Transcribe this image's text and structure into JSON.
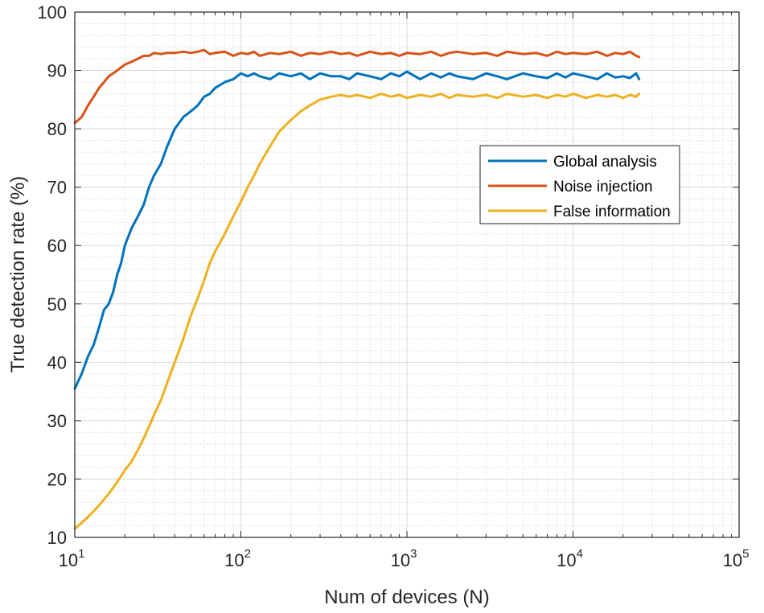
{
  "chart_data": {
    "type": "line",
    "title": "",
    "xlabel": "Num of devices (N)",
    "ylabel": "True detection rate (%)",
    "xscale": "log",
    "xlim": [
      10,
      100000
    ],
    "ylim": [
      10,
      100
    ],
    "x_ticks": [
      {
        "value": 10,
        "base": "10",
        "exp": "1"
      },
      {
        "value": 100,
        "base": "10",
        "exp": "2"
      },
      {
        "value": 1000,
        "base": "10",
        "exp": "3"
      },
      {
        "value": 10000,
        "base": "10",
        "exp": "4"
      },
      {
        "value": 100000,
        "base": "10",
        "exp": "5"
      }
    ],
    "y_ticks": [
      "10",
      "20",
      "30",
      "40",
      "50",
      "60",
      "70",
      "80",
      "90",
      "100"
    ],
    "grid": true,
    "legend": "right",
    "series": [
      {
        "name": "Global analysis",
        "color": "#0072bd",
        "x": [
          10,
          11,
          12,
          13,
          14,
          15,
          16,
          17,
          18,
          19,
          20,
          22,
          24,
          26,
          28,
          30,
          33,
          36,
          40,
          45,
          50,
          55,
          60,
          65,
          70,
          80,
          90,
          100,
          110,
          120,
          130,
          150,
          170,
          200,
          230,
          260,
          300,
          350,
          400,
          450,
          500,
          600,
          700,
          800,
          900,
          1000,
          1200,
          1400,
          1600,
          1800,
          2000,
          2500,
          3000,
          3500,
          4000,
          5000,
          6000,
          7000,
          8000,
          9000,
          10000,
          12000,
          14000,
          16000,
          18000,
          20000,
          22000,
          24000,
          25000
        ],
        "y": [
          35.5,
          38,
          41,
          43,
          46,
          49,
          50,
          52,
          55,
          57,
          60,
          63,
          65,
          67,
          70,
          72,
          74,
          77,
          80,
          82,
          83,
          84,
          85.5,
          86,
          87,
          88,
          88.5,
          89.5,
          89,
          89.5,
          89,
          88.5,
          89.5,
          89,
          89.5,
          88.5,
          89.5,
          89,
          89,
          88.5,
          89.5,
          89,
          88.5,
          89.5,
          89,
          89.8,
          88.5,
          89.5,
          88.8,
          89.5,
          89,
          88.5,
          89.5,
          89,
          88.5,
          89.5,
          89,
          88.7,
          89.5,
          88.8,
          89.5,
          89,
          88.5,
          89.5,
          88.8,
          89,
          88.7,
          89.5,
          88.5
        ]
      },
      {
        "name": "Noise injection",
        "color": "#d95319",
        "x": [
          10,
          11,
          12,
          13,
          14,
          15,
          16,
          17,
          18,
          19,
          20,
          22,
          24,
          26,
          28,
          30,
          33,
          36,
          40,
          45,
          50,
          55,
          60,
          65,
          70,
          80,
          90,
          100,
          110,
          120,
          130,
          150,
          170,
          200,
          230,
          260,
          300,
          350,
          400,
          450,
          500,
          600,
          700,
          800,
          900,
          1000,
          1200,
          1400,
          1600,
          1800,
          2000,
          2500,
          3000,
          3500,
          4000,
          5000,
          6000,
          7000,
          8000,
          9000,
          10000,
          12000,
          14000,
          16000,
          18000,
          20000,
          22000,
          24000,
          25000
        ],
        "y": [
          81,
          82,
          84,
          85.5,
          87,
          88,
          89,
          89.5,
          90,
          90.5,
          91,
          91.5,
          92,
          92.5,
          92.5,
          93,
          92.8,
          93,
          93,
          93.2,
          93,
          93.2,
          93.5,
          92.8,
          93,
          93.2,
          92.5,
          93,
          92.8,
          93.2,
          92.5,
          93,
          92.8,
          93.2,
          92.5,
          93,
          92.8,
          93.2,
          92.8,
          93,
          92.5,
          93.2,
          92.8,
          93,
          92.5,
          93,
          92.8,
          93.2,
          92.5,
          93,
          93.2,
          92.8,
          93,
          92.5,
          93.2,
          92.8,
          93,
          92.5,
          93.2,
          92.8,
          93,
          92.8,
          93.2,
          92.5,
          93,
          92.8,
          93.2,
          92.5,
          92.3
        ]
      },
      {
        "name": "False information",
        "color": "#edb120",
        "x": [
          10,
          11,
          12,
          13,
          14,
          15,
          16,
          17,
          18,
          19,
          20,
          22,
          24,
          26,
          28,
          30,
          33,
          36,
          40,
          45,
          50,
          55,
          60,
          65,
          70,
          80,
          90,
          100,
          110,
          120,
          130,
          150,
          170,
          200,
          230,
          260,
          300,
          350,
          400,
          450,
          500,
          600,
          700,
          800,
          900,
          1000,
          1200,
          1400,
          1600,
          1800,
          2000,
          2500,
          3000,
          3500,
          4000,
          5000,
          6000,
          7000,
          8000,
          9000,
          10000,
          12000,
          14000,
          16000,
          18000,
          20000,
          22000,
          24000,
          25000
        ],
        "y": [
          11.5,
          12.5,
          13.5,
          14.5,
          15.5,
          16.5,
          17.5,
          18.5,
          19.5,
          20.5,
          21.5,
          23,
          25,
          27,
          29,
          31,
          33.5,
          36.5,
          40,
          44,
          48,
          51,
          54,
          57,
          59,
          62,
          65,
          67.5,
          70,
          72,
          74,
          77,
          79.5,
          81.5,
          83,
          84,
          85,
          85.5,
          85.8,
          85.5,
          85.8,
          85.3,
          86,
          85.5,
          85.8,
          85.3,
          85.8,
          85.5,
          86,
          85.3,
          85.8,
          85.5,
          85.8,
          85.3,
          86,
          85.5,
          85.8,
          85.3,
          85.8,
          85.5,
          86,
          85.3,
          85.8,
          85.5,
          85.8,
          85.3,
          85.8,
          85.5,
          86
        ]
      }
    ]
  }
}
